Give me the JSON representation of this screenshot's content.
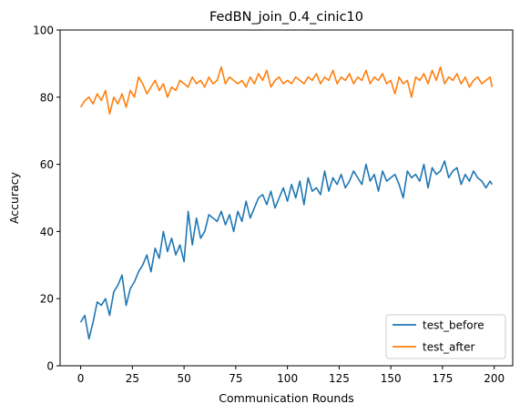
{
  "chart_data": {
    "type": "line",
    "title": "FedBN_join_0.4_cinic10",
    "xlabel": "Communication Rounds",
    "ylabel": "Accuracy",
    "xlim": [
      -9.95,
      208.95
    ],
    "ylim": [
      0,
      100
    ],
    "xticks": [
      0,
      25,
      50,
      75,
      100,
      125,
      150,
      175,
      200
    ],
    "yticks": [
      0,
      20,
      40,
      60,
      80,
      100
    ],
    "grid": false,
    "legend_position": "lower right",
    "series": [
      {
        "name": "test_before",
        "color": "#1f77b4",
        "x": [
          0,
          2,
          4,
          6,
          8,
          10,
          12,
          14,
          16,
          18,
          20,
          22,
          24,
          26,
          28,
          30,
          32,
          34,
          36,
          38,
          40,
          42,
          44,
          46,
          48,
          50,
          52,
          54,
          56,
          58,
          60,
          62,
          64,
          66,
          68,
          70,
          72,
          74,
          76,
          78,
          80,
          82,
          84,
          86,
          88,
          90,
          92,
          94,
          96,
          98,
          100,
          102,
          104,
          106,
          108,
          110,
          112,
          114,
          116,
          118,
          120,
          122,
          124,
          126,
          128,
          130,
          132,
          134,
          136,
          138,
          140,
          142,
          144,
          146,
          148,
          150,
          152,
          154,
          156,
          158,
          160,
          162,
          164,
          166,
          168,
          170,
          172,
          174,
          176,
          178,
          180,
          182,
          184,
          186,
          188,
          190,
          192,
          194,
          196,
          198,
          199
        ],
        "values": [
          13,
          15,
          8,
          13,
          19,
          18,
          20,
          15,
          22,
          24,
          27,
          18,
          23,
          25,
          28,
          30,
          33,
          28,
          35,
          32,
          40,
          34,
          38,
          33,
          36,
          31,
          46,
          36,
          44,
          38,
          40,
          45,
          44,
          43,
          46,
          42,
          45,
          40,
          46,
          43,
          49,
          44,
          47,
          50,
          51,
          48,
          52,
          47,
          50,
          53,
          49,
          54,
          50,
          55,
          48,
          56,
          52,
          53,
          51,
          58,
          52,
          56,
          54,
          57,
          53,
          55,
          58,
          56,
          54,
          60,
          55,
          57,
          52,
          58,
          55,
          56,
          57,
          54,
          50,
          58,
          56,
          57,
          55,
          60,
          53,
          59,
          57,
          58,
          61,
          56,
          58,
          59,
          54,
          57,
          55,
          58,
          56,
          55,
          53,
          55,
          54
        ]
      },
      {
        "name": "test_after",
        "color": "#ff7f0e",
        "x": [
          0,
          2,
          4,
          6,
          8,
          10,
          12,
          14,
          16,
          18,
          20,
          22,
          24,
          26,
          28,
          30,
          32,
          34,
          36,
          38,
          40,
          42,
          44,
          46,
          48,
          50,
          52,
          54,
          56,
          58,
          60,
          62,
          64,
          66,
          68,
          70,
          72,
          74,
          76,
          78,
          80,
          82,
          84,
          86,
          88,
          90,
          92,
          94,
          96,
          98,
          100,
          102,
          104,
          106,
          108,
          110,
          112,
          114,
          116,
          118,
          120,
          122,
          124,
          126,
          128,
          130,
          132,
          134,
          136,
          138,
          140,
          142,
          144,
          146,
          148,
          150,
          152,
          154,
          156,
          158,
          160,
          162,
          164,
          166,
          168,
          170,
          172,
          174,
          176,
          178,
          180,
          182,
          184,
          186,
          188,
          190,
          192,
          194,
          196,
          198,
          199
        ],
        "values": [
          77,
          79,
          80,
          78,
          81,
          79,
          82,
          75,
          80,
          78,
          81,
          77,
          82,
          80,
          86,
          84,
          81,
          83,
          85,
          82,
          84,
          80,
          83,
          82,
          85,
          84,
          83,
          86,
          84,
          85,
          83,
          86,
          84,
          85,
          89,
          84,
          86,
          85,
          84,
          85,
          83,
          86,
          84,
          87,
          85,
          88,
          83,
          85,
          86,
          84,
          85,
          84,
          86,
          85,
          84,
          86,
          85,
          87,
          84,
          86,
          85,
          88,
          84,
          86,
          85,
          87,
          84,
          86,
          85,
          88,
          84,
          86,
          85,
          87,
          84,
          85,
          81,
          86,
          84,
          85,
          80,
          86,
          85,
          87,
          84,
          88,
          85,
          89,
          84,
          86,
          85,
          87,
          84,
          86,
          83,
          85,
          86,
          84,
          85,
          86,
          83
        ]
      }
    ]
  }
}
